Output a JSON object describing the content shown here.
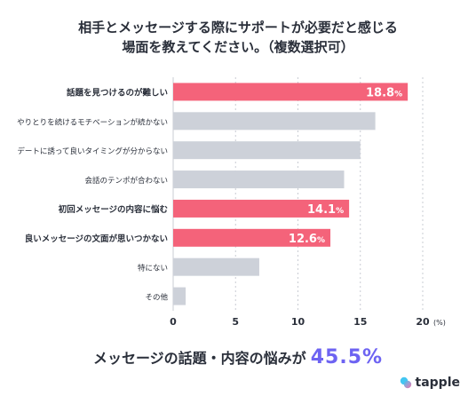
{
  "title_lines": [
    "相手とメッセージする際にサポートが必要だと感じる",
    "場面を教えてください。（複数選択可）"
  ],
  "summary": {
    "lead": "メッセージの話題・内容の悩みが",
    "highlight": "45.5%"
  },
  "logo": {
    "text": "tapple",
    "icon": "tapple-logo-icon"
  },
  "colors": {
    "highlight_bar": "#f4637a",
    "normal_bar": "#cdd1d9",
    "grid": "#c9ccd3",
    "accent": "#6d63f2"
  },
  "chart_data": {
    "type": "bar",
    "orientation": "horizontal",
    "categories": [
      "話題を見つけるのが難しい",
      "やりとりを続けるモチベーションが続かない",
      "デートに誘って良いタイミングが分からない",
      "会話のテンポが合わない",
      "初回メッセージの内容に悩む",
      "良いメッセージの文面が思いつかない",
      "特にない",
      "その他"
    ],
    "values": [
      18.8,
      16.2,
      15.0,
      13.7,
      14.1,
      12.6,
      6.9,
      1.0
    ],
    "highlighted": [
      true,
      false,
      false,
      false,
      true,
      true,
      false,
      false
    ],
    "data_labels": [
      "18.8",
      "",
      "",
      "",
      "14.1",
      "12.6",
      "",
      ""
    ],
    "data_label_unit": "%",
    "xlim": [
      0,
      20
    ],
    "xticks": [
      0,
      5,
      10,
      15,
      20
    ],
    "xunit": "(%)",
    "grid": true
  }
}
